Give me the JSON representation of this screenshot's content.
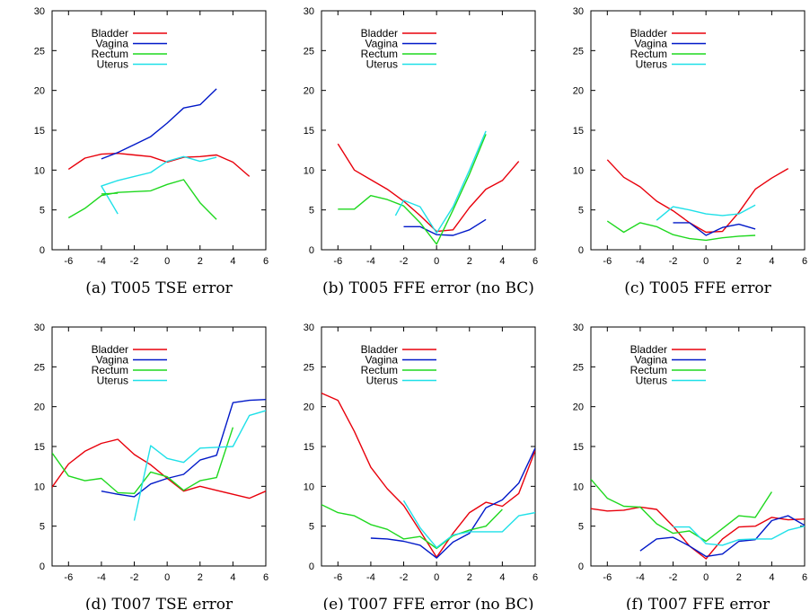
{
  "colors": {
    "Bladder": "#e8000b",
    "Vagina": "#0018c8",
    "Rectum": "#1fd81f",
    "Uterus": "#1fe0e8"
  },
  "chart_data": [
    {
      "type": "line",
      "caption": "(a) T005 TSE error",
      "xlim": [
        -7,
        6
      ],
      "ylim": [
        0,
        30
      ],
      "xticks": [
        -6,
        -4,
        -2,
        0,
        2,
        4,
        6
      ],
      "yticks": [
        0,
        5,
        10,
        15,
        20,
        25,
        30
      ],
      "legend": "top-left",
      "series": [
        {
          "name": "Bladder",
          "x": [
            -6,
            -5,
            -4,
            -3,
            -2,
            -1,
            0,
            1,
            2,
            3,
            4,
            5
          ],
          "y": [
            10.1,
            11.5,
            12.0,
            12.1,
            11.9,
            11.7,
            11.0,
            11.6,
            11.7,
            11.9,
            11.0,
            9.2
          ]
        },
        {
          "name": "Vagina",
          "x": [
            -4,
            -3,
            -2,
            -1,
            0,
            1,
            2,
            3
          ],
          "y": [
            11.4,
            12.2,
            13.2,
            14.2,
            15.9,
            17.8,
            18.2,
            20.2
          ]
        },
        {
          "name": "Rectum",
          "x": [
            -6,
            -5,
            -4,
            -3,
            -2,
            -1,
            0,
            1,
            2,
            3
          ],
          "y": [
            4.0,
            5.2,
            6.8,
            7.2,
            7.3,
            7.4,
            8.2,
            8.8,
            5.9,
            3.8
          ]
        },
        {
          "name": "Uterus",
          "x": [
            -3,
            -4,
            -3,
            -2,
            -1,
            0,
            1,
            2,
            3
          ],
          "y": [
            4.5,
            8.0,
            8.7,
            9.2,
            9.7,
            11.1,
            11.7,
            11.1,
            11.6
          ]
        },
        {
          "name": "",
          "x": [
            -4,
            -3
          ],
          "y": [
            7.0,
            7.1
          ]
        }
      ]
    },
    {
      "type": "line",
      "caption": "(b) T005 FFE error (no BC)",
      "xlim": [
        -7,
        6
      ],
      "ylim": [
        0,
        30
      ],
      "xticks": [
        -6,
        -4,
        -2,
        0,
        2,
        4,
        6
      ],
      "yticks": [
        0,
        5,
        10,
        15,
        20,
        25,
        30
      ],
      "legend": "top-left",
      "series": [
        {
          "name": "Bladder",
          "x": [
            -6,
            -5,
            -4,
            -3,
            -2,
            -1,
            0,
            1,
            2,
            3,
            4,
            5
          ],
          "y": [
            13.3,
            10.0,
            8.8,
            7.6,
            6.1,
            4.3,
            2.3,
            2.5,
            5.3,
            7.6,
            8.7,
            11.1
          ]
        },
        {
          "name": "Vagina",
          "x": [
            -2,
            -1,
            0,
            1,
            2,
            3
          ],
          "y": [
            2.9,
            2.9,
            1.9,
            1.8,
            2.5,
            3.8
          ]
        },
        {
          "name": "Rectum",
          "x": [
            -6,
            -5,
            -4,
            -3,
            -2,
            -1,
            0,
            1,
            2,
            3
          ],
          "y": [
            5.1,
            5.1,
            6.8,
            6.3,
            5.5,
            3.4,
            0.7,
            5.0,
            9.5,
            14.5
          ]
        },
        {
          "name": "Uterus",
          "x": [
            -2.5,
            -2,
            -1,
            0,
            1,
            2,
            3
          ],
          "y": [
            4.3,
            6.2,
            5.4,
            2.1,
            5.4,
            10.0,
            14.9
          ]
        }
      ]
    },
    {
      "type": "line",
      "caption": "(c) T005 FFE error",
      "xlim": [
        -7,
        6
      ],
      "ylim": [
        0,
        30
      ],
      "xticks": [
        -6,
        -4,
        -2,
        0,
        2,
        4,
        6
      ],
      "yticks": [
        0,
        5,
        10,
        15,
        20,
        25,
        30
      ],
      "legend": "top-left",
      "series": [
        {
          "name": "Bladder",
          "x": [
            -6,
            -5,
            -4,
            -3,
            -2,
            -1,
            0,
            1,
            2,
            3,
            4,
            5
          ],
          "y": [
            11.3,
            9.1,
            7.9,
            6.1,
            4.9,
            3.4,
            2.2,
            2.3,
            4.7,
            7.6,
            9.0,
            10.2
          ]
        },
        {
          "name": "Vagina",
          "x": [
            -2,
            -1,
            0,
            1,
            2,
            3
          ],
          "y": [
            3.4,
            3.4,
            1.8,
            2.8,
            3.2,
            2.6
          ]
        },
        {
          "name": "Rectum",
          "x": [
            -6,
            -5,
            -4,
            -3,
            -2,
            -1,
            0,
            1,
            2,
            3
          ],
          "y": [
            3.6,
            2.2,
            3.4,
            2.9,
            1.9,
            1.4,
            1.2,
            1.5,
            1.7,
            1.8
          ]
        },
        {
          "name": "Uterus",
          "x": [
            -3,
            -2,
            -1,
            0,
            1,
            2,
            3
          ],
          "y": [
            3.7,
            5.4,
            5.0,
            4.5,
            4.3,
            4.5,
            5.6
          ]
        }
      ]
    },
    {
      "type": "line",
      "caption": "(d) T007 TSE error",
      "xlim": [
        -7,
        6
      ],
      "ylim": [
        0,
        30
      ],
      "xticks": [
        -6,
        -4,
        -2,
        0,
        2,
        4,
        6
      ],
      "yticks": [
        0,
        5,
        10,
        15,
        20,
        25,
        30
      ],
      "legend": "top-left",
      "series": [
        {
          "name": "Bladder",
          "x": [
            -7,
            -6,
            -5,
            -4,
            -3,
            -2,
            -1,
            0,
            1,
            2,
            3,
            4,
            5,
            6
          ],
          "y": [
            9.9,
            12.8,
            14.4,
            15.4,
            15.9,
            14.0,
            12.7,
            11.0,
            9.4,
            10.0,
            9.5,
            9.0,
            8.5,
            9.4
          ]
        },
        {
          "name": "Vagina",
          "x": [
            -4,
            -3,
            -2,
            -1,
            0,
            1,
            2,
            3,
            4,
            5,
            6
          ],
          "y": [
            9.4,
            9.0,
            8.7,
            10.3,
            11.0,
            11.5,
            13.3,
            13.9,
            20.5,
            20.8,
            20.9
          ]
        },
        {
          "name": "Rectum",
          "x": [
            -7,
            -6,
            -5,
            -4,
            -3,
            -2,
            -1,
            0,
            1,
            2,
            3,
            4
          ],
          "y": [
            14.2,
            11.3,
            10.7,
            11.0,
            9.2,
            9.1,
            11.8,
            11.2,
            9.5,
            10.7,
            11.1,
            17.4
          ]
        },
        {
          "name": "Uterus",
          "x": [
            -2,
            -1,
            0,
            1,
            2,
            3,
            4,
            5,
            6
          ],
          "y": [
            5.7,
            15.1,
            13.5,
            13.0,
            14.8,
            14.9,
            15.0,
            18.9,
            19.5
          ]
        }
      ]
    },
    {
      "type": "line",
      "caption": "(e) T007 FFE error (no BC)",
      "xlim": [
        -7,
        6
      ],
      "ylim": [
        0,
        30
      ],
      "xticks": [
        -6,
        -4,
        -2,
        0,
        2,
        4,
        6
      ],
      "yticks": [
        0,
        5,
        10,
        15,
        20,
        25,
        30
      ],
      "legend": "top-left",
      "series": [
        {
          "name": "Bladder",
          "x": [
            -7,
            -6,
            -5,
            -4,
            -3,
            -2,
            -1,
            0,
            1,
            2,
            3,
            4,
            5,
            6
          ],
          "y": [
            21.7,
            20.8,
            16.9,
            12.4,
            9.7,
            7.6,
            4.4,
            1.1,
            4.1,
            6.7,
            8.0,
            7.5,
            9.1,
            14.5
          ]
        },
        {
          "name": "Vagina",
          "x": [
            -4,
            -3,
            -2,
            -1,
            0,
            1,
            2,
            3,
            4,
            5,
            6
          ],
          "y": [
            3.5,
            3.4,
            3.1,
            2.6,
            1.0,
            3.0,
            4.1,
            7.3,
            8.3,
            10.4,
            14.8
          ]
        },
        {
          "name": "Rectum",
          "x": [
            -7,
            -6,
            -5,
            -4,
            -3,
            -2,
            -1,
            0,
            1,
            2,
            3,
            4
          ],
          "y": [
            7.7,
            6.7,
            6.3,
            5.2,
            4.6,
            3.4,
            3.7,
            2.2,
            3.8,
            4.5,
            5.0,
            7.1
          ]
        },
        {
          "name": "Uterus",
          "x": [
            -2,
            -1,
            0,
            1,
            2,
            3,
            4,
            5,
            6
          ],
          "y": [
            8.2,
            4.8,
            2.3,
            3.9,
            4.3,
            4.3,
            4.3,
            6.3,
            6.7
          ]
        }
      ]
    },
    {
      "type": "line",
      "caption": "(f) T007 FFE error",
      "xlim": [
        -7,
        6
      ],
      "ylim": [
        0,
        30
      ],
      "xticks": [
        -6,
        -4,
        -2,
        0,
        2,
        4,
        6
      ],
      "yticks": [
        0,
        5,
        10,
        15,
        20,
        25,
        30
      ],
      "legend": "top-left",
      "series": [
        {
          "name": "Bladder",
          "x": [
            -7,
            -6,
            -5,
            -4,
            -3,
            -2,
            -1,
            0,
            1,
            2,
            3,
            4,
            5,
            6
          ],
          "y": [
            7.2,
            6.9,
            7.0,
            7.4,
            7.1,
            5.0,
            2.5,
            0.9,
            3.4,
            4.9,
            5.0,
            6.1,
            5.8,
            5.9
          ]
        },
        {
          "name": "Vagina",
          "x": [
            -4,
            -3,
            -2,
            -1,
            0,
            1,
            2,
            3,
            4,
            5,
            6
          ],
          "y": [
            1.9,
            3.4,
            3.6,
            2.5,
            1.2,
            1.5,
            3.1,
            3.3,
            5.7,
            6.3,
            5.1
          ]
        },
        {
          "name": "Rectum",
          "x": [
            -7,
            -6,
            -5,
            -4,
            -3,
            -2,
            -1,
            0,
            1,
            2,
            3,
            4
          ],
          "y": [
            10.9,
            8.5,
            7.5,
            7.4,
            5.3,
            4.1,
            4.4,
            3.1,
            4.7,
            6.3,
            6.1,
            9.3
          ]
        },
        {
          "name": "Uterus",
          "x": [
            -2,
            -1,
            0,
            1,
            2,
            3,
            4,
            5,
            6
          ],
          "y": [
            4.9,
            4.9,
            2.8,
            2.6,
            3.3,
            3.4,
            3.4,
            4.5,
            5.0
          ]
        }
      ]
    }
  ]
}
